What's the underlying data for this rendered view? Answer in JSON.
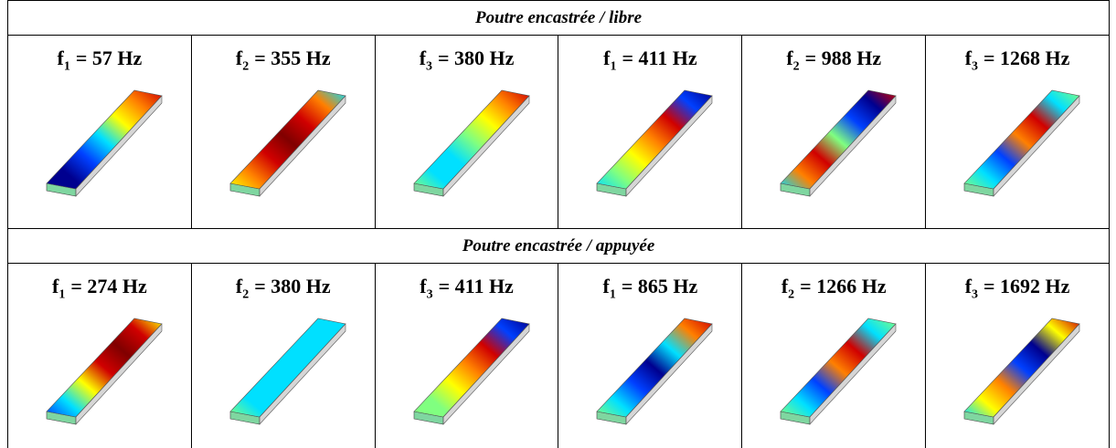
{
  "sections": [
    {
      "title": "Poutre encastrée / libre",
      "modes": [
        {
          "symbol": "f",
          "index": "1",
          "value": "= 57 Hz"
        },
        {
          "symbol": "f",
          "index": "2",
          "value": "= 355 Hz"
        },
        {
          "symbol": "f",
          "index": "3",
          "value": "= 380 Hz"
        },
        {
          "symbol": "f",
          "index": "1",
          "value": "= 411 Hz"
        },
        {
          "symbol": "f",
          "index": "2",
          "value": "= 988 Hz"
        },
        {
          "symbol": "f",
          "index": "3",
          "value": "= 1268 Hz"
        }
      ]
    },
    {
      "title": "Poutre encastrée / appuyée",
      "modes": [
        {
          "symbol": "f",
          "index": "1",
          "value": "= 274 Hz"
        },
        {
          "symbol": "f",
          "index": "2",
          "value": "= 380 Hz"
        },
        {
          "symbol": "f",
          "index": "3",
          "value": "= 411 Hz"
        },
        {
          "symbol": "f",
          "index": "1",
          "value": "= 865 Hz"
        },
        {
          "symbol": "f",
          "index": "2",
          "value": "= 1266 Hz"
        },
        {
          "symbol": "f",
          "index": "3",
          "value": "= 1692 Hz"
        }
      ]
    }
  ]
}
